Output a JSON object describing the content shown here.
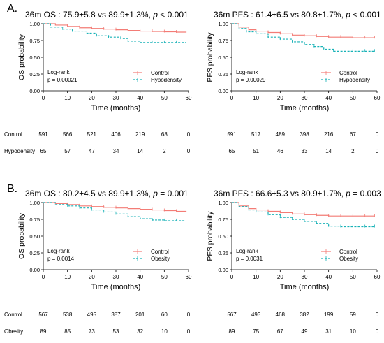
{
  "colors": {
    "control": "#f37c76",
    "group": "#19b2b7",
    "axis": "#000000",
    "grid_text": "#000000"
  },
  "chart_data": [
    {
      "section": "A.",
      "type": "line",
      "kind": "kaplan-meier",
      "title_prefix": "36m OS : 75.9±5.8 vs 89.9±1.3%, ",
      "title_p": "p",
      "title_suffix": " < 0.001",
      "ylabel": "OS probability",
      "xlabel": "Time (months)",
      "xlim": [
        0,
        60
      ],
      "ylim": [
        0,
        1
      ],
      "xticks": [
        "0",
        "10",
        "20",
        "30",
        "40",
        "50",
        "60"
      ],
      "yticks": [
        "0.00",
        "0.25",
        "0.50",
        "0.75",
        "1.00"
      ],
      "test_label": "Log-rank",
      "p_text": "p = 0.00021",
      "legend": [
        "Control",
        "Hypodensity"
      ],
      "series": [
        {
          "name": "Control",
          "x": [
            0,
            5,
            10,
            15,
            20,
            25,
            30,
            35,
            40,
            45,
            50,
            55,
            59
          ],
          "y": [
            1.0,
            0.98,
            0.96,
            0.94,
            0.93,
            0.92,
            0.91,
            0.9,
            0.89,
            0.885,
            0.88,
            0.875,
            0.87
          ]
        },
        {
          "name": "Hypodensity",
          "x": [
            0,
            3,
            8,
            12,
            18,
            22,
            27,
            32,
            35,
            40,
            45,
            50,
            55,
            59
          ],
          "y": [
            1.0,
            0.95,
            0.92,
            0.89,
            0.86,
            0.82,
            0.8,
            0.78,
            0.74,
            0.72,
            0.72,
            0.72,
            0.72,
            0.72
          ]
        }
      ],
      "risk_times": [
        0,
        10,
        20,
        30,
        40,
        50,
        60
      ],
      "risk_table": [
        {
          "label": "Control",
          "values": [
            "591",
            "566",
            "521",
            "406",
            "219",
            "68",
            "0"
          ]
        },
        {
          "label": "Hypodensity",
          "values": [
            "65",
            "57",
            "47",
            "34",
            "14",
            "2",
            "0"
          ]
        }
      ]
    },
    {
      "section": "",
      "type": "line",
      "kind": "kaplan-meier",
      "title_prefix": "36m PFS : 61.4±6.5 vs 80.8±1.7%, ",
      "title_p": "p",
      "title_suffix": " < 0.001",
      "ylabel": "PFS probability",
      "xlabel": "Time (months)",
      "xlim": [
        0,
        60
      ],
      "ylim": [
        0,
        1
      ],
      "xticks": [
        "0",
        "10",
        "20",
        "30",
        "40",
        "50",
        "60"
      ],
      "yticks": [
        "0.00",
        "0.25",
        "0.50",
        "0.75",
        "1.00"
      ],
      "test_label": "Log-rank",
      "p_text": "p = 0.00029",
      "legend": [
        "Control",
        "Hypodensity"
      ],
      "series": [
        {
          "name": "Control",
          "x": [
            0,
            3,
            7,
            10,
            15,
            20,
            25,
            30,
            35,
            40,
            45,
            50,
            55,
            59
          ],
          "y": [
            1.0,
            0.95,
            0.91,
            0.89,
            0.87,
            0.85,
            0.83,
            0.82,
            0.81,
            0.8,
            0.8,
            0.79,
            0.79,
            0.79
          ]
        },
        {
          "name": "Hypodensity",
          "x": [
            0,
            3,
            6,
            10,
            15,
            20,
            25,
            30,
            34,
            38,
            42,
            50,
            55,
            59
          ],
          "y": [
            1.0,
            0.93,
            0.88,
            0.85,
            0.8,
            0.77,
            0.73,
            0.69,
            0.66,
            0.62,
            0.59,
            0.59,
            0.59,
            0.59
          ]
        }
      ],
      "risk_times": [
        0,
        10,
        20,
        30,
        40,
        50,
        60
      ],
      "risk_table": [
        {
          "label": "",
          "values": [
            "591",
            "517",
            "489",
            "398",
            "216",
            "67",
            "0"
          ]
        },
        {
          "label": "",
          "values": [
            "65",
            "51",
            "46",
            "33",
            "14",
            "2",
            "0"
          ]
        }
      ]
    },
    {
      "section": "B.",
      "type": "line",
      "kind": "kaplan-meier",
      "title_prefix": "36m OS : 80.2±4.5 vs 89.9±1.3%, ",
      "title_p": "p",
      "title_suffix": " = 0.001",
      "ylabel": "OS probability",
      "xlabel": "Time (months)",
      "xlim": [
        0,
        60
      ],
      "ylim": [
        0,
        1
      ],
      "xticks": [
        "0",
        "10",
        "20",
        "30",
        "40",
        "50",
        "60"
      ],
      "yticks": [
        "0.00",
        "0.25",
        "0.50",
        "0.75",
        "1.00"
      ],
      "test_label": "Log-rank",
      "p_text": "p = 0.0014",
      "legend": [
        "Control",
        "Obesity"
      ],
      "series": [
        {
          "name": "Control",
          "x": [
            0,
            5,
            10,
            15,
            20,
            25,
            30,
            35,
            40,
            45,
            50,
            55,
            59
          ],
          "y": [
            1.0,
            0.985,
            0.97,
            0.95,
            0.94,
            0.93,
            0.92,
            0.91,
            0.9,
            0.89,
            0.88,
            0.87,
            0.86
          ]
        },
        {
          "name": "Obesity",
          "x": [
            0,
            5,
            10,
            15,
            20,
            25,
            30,
            35,
            40,
            45,
            50,
            55,
            59
          ],
          "y": [
            1.0,
            0.97,
            0.95,
            0.92,
            0.89,
            0.86,
            0.83,
            0.79,
            0.76,
            0.74,
            0.73,
            0.73,
            0.73
          ]
        }
      ],
      "risk_times": [
        0,
        10,
        20,
        30,
        40,
        50,
        60
      ],
      "risk_table": [
        {
          "label": "Control",
          "values": [
            "567",
            "538",
            "495",
            "387",
            "201",
            "60",
            "0"
          ]
        },
        {
          "label": "Obesity",
          "values": [
            "89",
            "85",
            "73",
            "53",
            "32",
            "10",
            "0"
          ]
        }
      ]
    },
    {
      "section": "",
      "type": "line",
      "kind": "kaplan-meier",
      "title_prefix": "36m PFS : 66.6±5.3 vs 80.9±1.7%, ",
      "title_p": "p",
      "title_suffix": " = 0.003",
      "ylabel": "PFS probability",
      "xlabel": "Time (months)",
      "xlim": [
        0,
        60
      ],
      "ylim": [
        0,
        1
      ],
      "xticks": [
        "0",
        "10",
        "20",
        "30",
        "40",
        "50",
        "60"
      ],
      "yticks": [
        "0.00",
        "0.25",
        "0.50",
        "0.75",
        "1.00"
      ],
      "test_label": "Log-rank",
      "p_text": "p = 0.0031",
      "legend": [
        "Control",
        "Obesity"
      ],
      "series": [
        {
          "name": "Control",
          "x": [
            0,
            3,
            7,
            10,
            15,
            20,
            25,
            30,
            35,
            40,
            45,
            50,
            55,
            59
          ],
          "y": [
            1.0,
            0.95,
            0.91,
            0.89,
            0.87,
            0.85,
            0.83,
            0.82,
            0.81,
            0.8,
            0.8,
            0.8,
            0.8,
            0.8
          ]
        },
        {
          "name": "Obesity",
          "x": [
            0,
            3,
            7,
            10,
            15,
            20,
            25,
            30,
            35,
            40,
            45,
            50,
            55,
            59
          ],
          "y": [
            1.0,
            0.94,
            0.89,
            0.86,
            0.82,
            0.78,
            0.75,
            0.72,
            0.69,
            0.65,
            0.64,
            0.64,
            0.64,
            0.64
          ]
        }
      ],
      "risk_times": [
        0,
        10,
        20,
        30,
        40,
        50,
        60
      ],
      "risk_table": [
        {
          "label": "",
          "values": [
            "567",
            "493",
            "468",
            "382",
            "199",
            "59",
            "0"
          ]
        },
        {
          "label": "",
          "values": [
            "89",
            "75",
            "67",
            "49",
            "31",
            "10",
            "0"
          ]
        }
      ]
    }
  ]
}
